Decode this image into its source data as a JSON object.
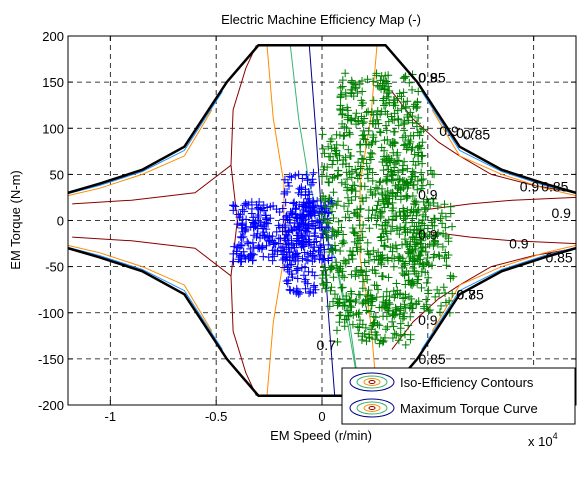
{
  "chart_data": {
    "type": "scatter",
    "title": "Electric Machine Efficiency Map (-)",
    "xlabel": "EM Speed (r/min)",
    "ylabel": "EM Torque (N-m)",
    "x_multiplier_label": "x 10",
    "x_multiplier_exponent": "4",
    "xlim": [
      -12000,
      12000
    ],
    "ylim": [
      -200,
      200
    ],
    "x_ticks": [
      -10000,
      -5000,
      0,
      5000,
      10000
    ],
    "x_tick_labels": [
      "-1",
      "-0.5",
      "0",
      "0.5",
      "1"
    ],
    "y_ticks": [
      -200,
      -150,
      -100,
      -50,
      0,
      50,
      100,
      150,
      200
    ],
    "y_tick_labels": [
      "-200",
      "-150",
      "-100",
      "-50",
      "0",
      "50",
      "100",
      "150",
      "200"
    ],
    "grid": true,
    "legend_position": "bottom-right",
    "legend": [
      {
        "label": "Iso-Efficiency Contours"
      },
      {
        "label": "Maximum Torque Curve"
      }
    ],
    "max_torque_curve": {
      "color": "#000000",
      "x": [
        -12000,
        -10500,
        -8500,
        -6500,
        -4500,
        -3000,
        3000,
        4500,
        6500,
        8500,
        10500,
        12000
      ],
      "y": [
        30,
        40,
        55,
        80,
        150,
        190,
        190,
        150,
        80,
        55,
        40,
        30
      ]
    },
    "contour_labels": [
      {
        "text": "0.9",
        "x": 5000,
        "y": 155
      },
      {
        "text": "0.85",
        "x": 5200,
        "y": 155
      },
      {
        "text": "0.9",
        "x": 6000,
        "y": 97
      },
      {
        "text": "0.7",
        "x": 6800,
        "y": 95
      },
      {
        "text": "0.85",
        "x": 7300,
        "y": 93
      },
      {
        "text": "0.9",
        "x": 9800,
        "y": 37
      },
      {
        "text": "0.85",
        "x": 11000,
        "y": 37
      },
      {
        "text": "0.9",
        "x": 5000,
        "y": 28
      },
      {
        "text": "0.9",
        "x": 11300,
        "y": 8
      },
      {
        "text": "0.9",
        "x": 5000,
        "y": -15
      },
      {
        "text": "0.9",
        "x": 9300,
        "y": -25
      },
      {
        "text": "0.85",
        "x": 11200,
        "y": -40
      },
      {
        "text": "0.7",
        "x": 6800,
        "y": -80
      },
      {
        "text": "0.85",
        "x": 7000,
        "y": -80
      },
      {
        "text": "0.9",
        "x": 5000,
        "y": -108
      },
      {
        "text": "0.85",
        "x": 5200,
        "y": -150
      },
      {
        "text": "0.7",
        "x": 200,
        "y": -135
      }
    ],
    "contours": [
      {
        "color": "#00008b",
        "x": [
          -600,
          -300,
          0,
          300,
          600,
          300,
          0,
          -300,
          -600
        ],
        "y": [
          190,
          100,
          0,
          -100,
          -190,
          -100,
          0,
          100,
          190
        ]
      },
      {
        "color": "#3cb371",
        "x": [
          -1500,
          -1100,
          -600,
          -100,
          600,
          1200,
          1800,
          1300,
          600,
          -100,
          -600,
          -1100,
          -1500
        ],
        "y": [
          190,
          110,
          40,
          0,
          -40,
          -110,
          -190,
          -110,
          -40,
          0,
          40,
          110,
          190
        ]
      },
      {
        "color": "#ff8c00",
        "x": [
          -2600,
          -2300,
          -1800,
          -1800,
          -2300,
          -2600
        ],
        "y": [
          190,
          110,
          40,
          -40,
          -110,
          -190
        ]
      },
      {
        "color": "#ff8c00",
        "x": [
          2600,
          2300,
          1800,
          1800,
          2300,
          2600
        ],
        "y": [
          190,
          110,
          40,
          -40,
          -110,
          -190
        ]
      },
      {
        "color": "#8b0000",
        "x": [
          -11800,
          -9000,
          -6000,
          -4300,
          -4000,
          -4300,
          -6000,
          -9000,
          -11800
        ],
        "y": [
          18,
          22,
          30,
          60,
          0,
          -60,
          -30,
          -22,
          -18
        ]
      },
      {
        "color": "#8b0000",
        "x": [
          -4300,
          -4200,
          -3600,
          -3100
        ],
        "y": [
          60,
          120,
          165,
          190
        ]
      },
      {
        "color": "#8b0000",
        "x": [
          -4300,
          -4200,
          -3600,
          -3100
        ],
        "y": [
          -60,
          -120,
          -165,
          -190
        ]
      },
      {
        "color": "#8b0000",
        "x": [
          3300,
          4300,
          5500,
          6500,
          8000,
          10000,
          12000
        ],
        "y": [
          140,
          110,
          85,
          70,
          50,
          38,
          30
        ]
      },
      {
        "color": "#8b0000",
        "x": [
          3300,
          4300,
          5500,
          6500,
          8000,
          10000,
          12000
        ],
        "y": [
          -140,
          -110,
          -85,
          -70,
          -50,
          -38,
          -30
        ]
      },
      {
        "color": "#8b0000",
        "x": [
          5000,
          7000,
          9000,
          12000
        ],
        "y": [
          12,
          18,
          22,
          25
        ]
      },
      {
        "color": "#8b0000",
        "x": [
          5000,
          7000,
          9000,
          12000
        ],
        "y": [
          -12,
          -18,
          -22,
          -25
        ]
      },
      {
        "color": "#ff8c00",
        "x": [
          -12000,
          -10500,
          -8500,
          -6500,
          -5200
        ],
        "y": [
          27,
          35,
          50,
          70,
          120
        ]
      },
      {
        "color": "#ff8c00",
        "x": [
          -12000,
          -10500,
          -8500,
          -6500,
          -5200
        ],
        "y": [
          -27,
          -35,
          -50,
          -70,
          -120
        ]
      },
      {
        "color": "#ff8c00",
        "x": [
          12000,
          10500,
          8500,
          6500,
          5200
        ],
        "y": [
          27,
          35,
          50,
          70,
          120
        ]
      },
      {
        "color": "#ff8c00",
        "x": [
          12000,
          10500,
          8500,
          6500,
          5200
        ],
        "y": [
          -27,
          -35,
          -50,
          -70,
          -120
        ]
      },
      {
        "color": "#1e90ff",
        "x": [
          -12000,
          -10500,
          -8500,
          -6500,
          -4700
        ],
        "y": [
          29,
          38,
          53,
          76,
          140
        ]
      },
      {
        "color": "#1e90ff",
        "x": [
          -12000,
          -10500,
          -8500,
          -6500,
          -4700
        ],
        "y": [
          -29,
          -38,
          -53,
          -76,
          -140
        ]
      },
      {
        "color": "#1e90ff",
        "x": [
          12000,
          10500,
          8500,
          6500,
          4700
        ],
        "y": [
          29,
          38,
          53,
          76,
          140
        ]
      },
      {
        "color": "#1e90ff",
        "x": [
          12000,
          10500,
          8500,
          6500,
          4700
        ],
        "y": [
          -29,
          -38,
          -53,
          -76,
          -140
        ]
      }
    ],
    "series": [
      {
        "color": "#0000ff",
        "marker": "+",
        "regions": [
          {
            "x_range": [
              -4200,
              500
            ],
            "y_range": [
              -45,
              22
            ],
            "count": 260
          },
          {
            "x_range": [
              -1800,
              -300
            ],
            "y_range": [
              -80,
              52
            ],
            "count": 160
          },
          {
            "x_range": [
              -3800,
              -2600
            ],
            "y_range": [
              -40,
              22
            ],
            "count": 40
          }
        ]
      },
      {
        "color": "#008000",
        "marker": "+",
        "regions": [
          {
            "x_range": [
              0,
              4800
            ],
            "y_range": [
              -95,
              100
            ],
            "count": 520
          },
          {
            "x_range": [
              800,
              4600
            ],
            "y_range": [
              100,
              160
            ],
            "count": 150
          },
          {
            "x_range": [
              700,
              4200
            ],
            "y_range": [
              -135,
              -80
            ],
            "count": 120
          },
          {
            "x_range": [
              4200,
              6200
            ],
            "y_range": [
              -100,
              20
            ],
            "count": 90
          },
          {
            "x_range": [
              2500,
              5400
            ],
            "y_range": [
              -45,
              55
            ],
            "count": 120
          }
        ]
      }
    ]
  }
}
